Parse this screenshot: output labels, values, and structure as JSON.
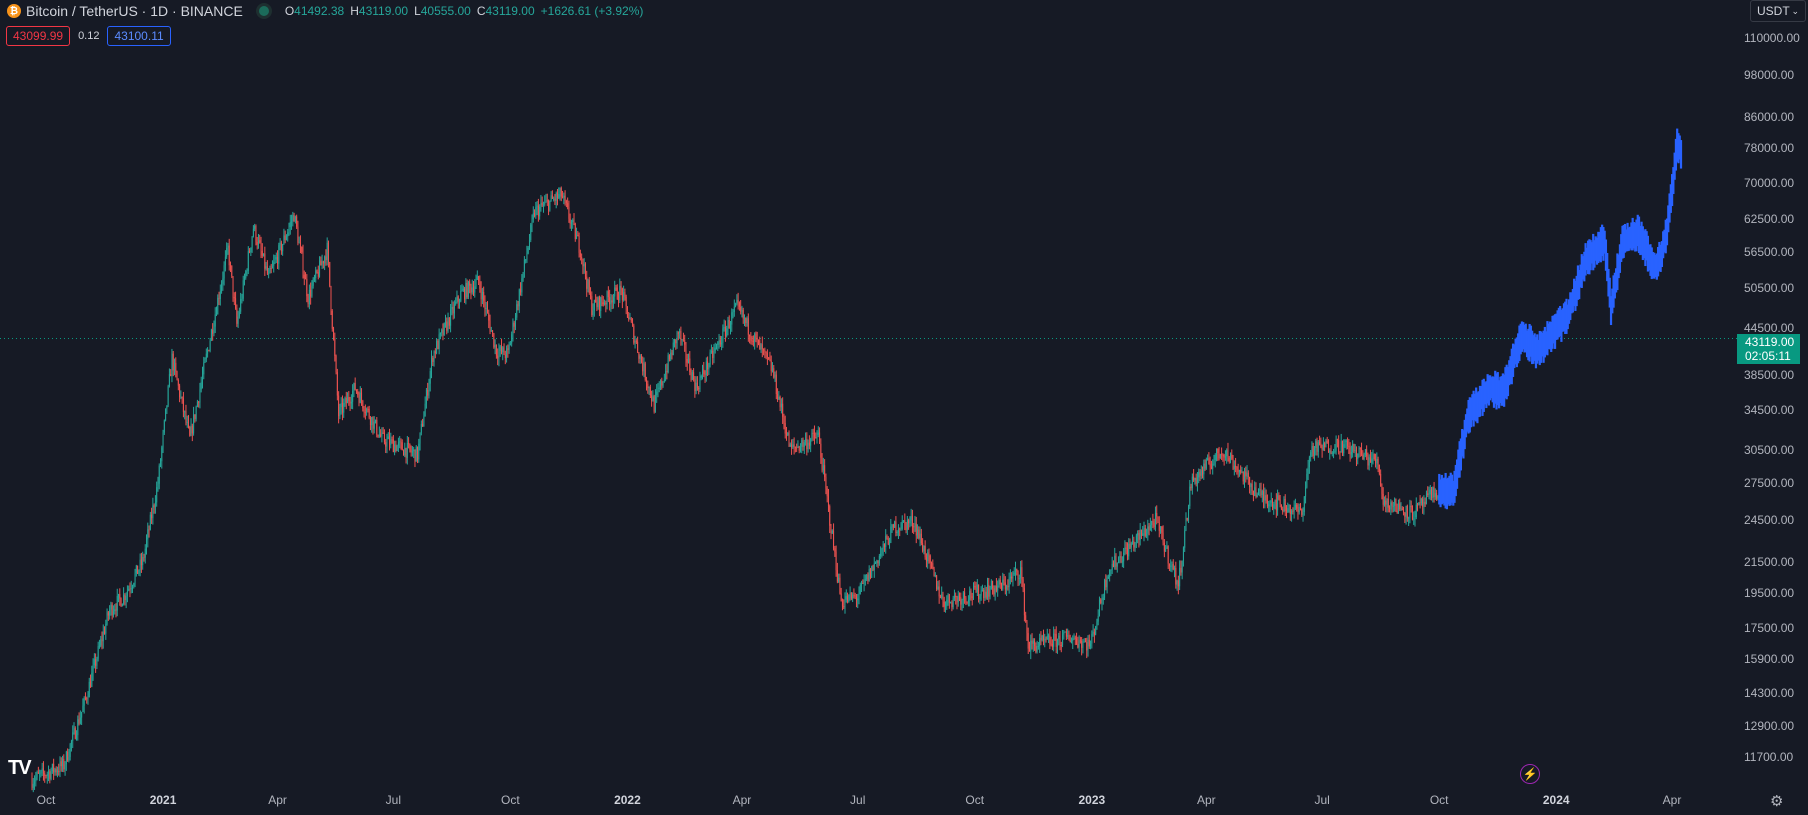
{
  "header": {
    "title": "Bitcoin / TetherUS · 1D · BINANCE",
    "coin_icon": "bitcoin-icon",
    "ohlc": [
      {
        "key": "O",
        "value": "41492.38"
      },
      {
        "key": "H",
        "value": "43119.00"
      },
      {
        "key": "L",
        "value": "40555.00"
      },
      {
        "key": "C",
        "value": "43119.00"
      }
    ],
    "change": "+1626.61 (+3.92%)"
  },
  "quote": {
    "bid": "43099.99",
    "spread": "0.12",
    "ask": "43100.11"
  },
  "currency": {
    "label": "USDT",
    "icon": "chevron-down-icon"
  },
  "price_label": {
    "price": "43119.00",
    "countdown": "02:05:11"
  },
  "branding": {
    "logo": "TV"
  },
  "colors": {
    "background": "#161a25",
    "up": "#26a69a",
    "down": "#ef5350",
    "forecast": "#2962ff",
    "last_price": "#089981"
  },
  "chart_data": {
    "type": "candlestick",
    "y_scale": "log",
    "ylim": [
      10800,
      118000
    ],
    "y_ticks": [
      "110000.00",
      "98000.00",
      "86000.00",
      "78000.00",
      "70000.00",
      "62500.00",
      "56500.00",
      "50500.00",
      "44500.00",
      "38500.00",
      "34500.00",
      "30500.00",
      "27500.00",
      "24500.00",
      "21500.00",
      "19500.00",
      "17500.00",
      "15900.00",
      "14300.00",
      "12900.00",
      "11700.00"
    ],
    "x_ticks": [
      {
        "label": "Oct",
        "date": "2020-10-01"
      },
      {
        "label": "2021",
        "date": "2021-01-01"
      },
      {
        "label": "Apr",
        "date": "2021-04-01"
      },
      {
        "label": "Jul",
        "date": "2021-07-01"
      },
      {
        "label": "Oct",
        "date": "2021-10-01"
      },
      {
        "label": "2022",
        "date": "2022-01-01"
      },
      {
        "label": "Apr",
        "date": "2022-04-01"
      },
      {
        "label": "Jul",
        "date": "2022-07-01"
      },
      {
        "label": "Oct",
        "date": "2022-10-01"
      },
      {
        "label": "2023",
        "date": "2023-01-01"
      },
      {
        "label": "Apr",
        "date": "2023-04-01"
      },
      {
        "label": "Jul",
        "date": "2023-07-01"
      },
      {
        "label": "Oct",
        "date": "2023-10-01"
      },
      {
        "label": "2024",
        "date": "2024-01-01"
      },
      {
        "label": "Apr",
        "date": "2024-04-01"
      }
    ],
    "last_price": 43119.0,
    "price_path": [
      [
        "2020-09-20",
        10900
      ],
      [
        "2020-10-15",
        11400
      ],
      [
        "2020-10-31",
        13800
      ],
      [
        "2020-11-20",
        18500
      ],
      [
        "2020-12-01",
        19300
      ],
      [
        "2020-12-16",
        21500
      ],
      [
        "2020-12-28",
        27500
      ],
      [
        "2021-01-08",
        40500
      ],
      [
        "2021-01-22",
        31500
      ],
      [
        "2021-02-08",
        44000
      ],
      [
        "2021-02-21",
        57000
      ],
      [
        "2021-02-28",
        45000
      ],
      [
        "2021-03-13",
        61000
      ],
      [
        "2021-03-25",
        52000
      ],
      [
        "2021-04-14",
        63500
      ],
      [
        "2021-04-25",
        49000
      ],
      [
        "2021-05-10",
        57000
      ],
      [
        "2021-05-19",
        34000
      ],
      [
        "2021-06-01",
        37000
      ],
      [
        "2021-06-22",
        31500
      ],
      [
        "2021-07-20",
        30000
      ],
      [
        "2021-08-01",
        41000
      ],
      [
        "2021-08-23",
        49500
      ],
      [
        "2021-09-06",
        51500
      ],
      [
        "2021-09-20",
        41500
      ],
      [
        "2021-09-29",
        41000
      ],
      [
        "2021-10-20",
        64000
      ],
      [
        "2021-11-10",
        67500
      ],
      [
        "2021-11-25",
        57000
      ],
      [
        "2021-12-04",
        47500
      ],
      [
        "2021-12-27",
        50000
      ],
      [
        "2022-01-22",
        35000
      ],
      [
        "2022-02-10",
        44000
      ],
      [
        "2022-02-24",
        37000
      ],
      [
        "2022-03-28",
        47500
      ],
      [
        "2022-04-25",
        39000
      ],
      [
        "2022-05-09",
        30500
      ],
      [
        "2022-05-31",
        31800
      ],
      [
        "2022-06-18",
        19000
      ],
      [
        "2022-07-01",
        19300
      ],
      [
        "2022-07-30",
        24000
      ],
      [
        "2022-08-14",
        24400
      ],
      [
        "2022-09-06",
        19000
      ],
      [
        "2022-10-25",
        20000
      ],
      [
        "2022-11-06",
        21000
      ],
      [
        "2022-11-12",
        16500
      ],
      [
        "2022-12-15",
        17000
      ],
      [
        "2022-12-31",
        16600
      ],
      [
        "2023-01-14",
        21000
      ],
      [
        "2023-02-20",
        24500
      ],
      [
        "2023-03-10",
        20000
      ],
      [
        "2023-03-20",
        27500
      ],
      [
        "2023-04-14",
        30500
      ],
      [
        "2023-05-12",
        26500
      ],
      [
        "2023-06-15",
        25000
      ],
      [
        "2023-06-22",
        30500
      ],
      [
        "2023-07-14",
        31000
      ],
      [
        "2023-08-14",
        29300
      ],
      [
        "2023-08-18",
        26000
      ],
      [
        "2023-09-11",
        25000
      ],
      [
        "2023-10-01",
        27000
      ]
    ],
    "forecast_path": [
      [
        "2023-10-01",
        27000
      ],
      [
        "2023-10-12",
        26800
      ],
      [
        "2023-10-24",
        34000
      ],
      [
        "2023-11-10",
        37000
      ],
      [
        "2023-11-20",
        36500
      ],
      [
        "2023-12-05",
        43500
      ],
      [
        "2023-12-18",
        41500
      ],
      [
        "2024-01-10",
        46500
      ],
      [
        "2024-01-25",
        55500
      ],
      [
        "2024-02-08",
        58500
      ],
      [
        "2024-02-13",
        47500
      ],
      [
        "2024-02-22",
        58000
      ],
      [
        "2024-03-05",
        60000
      ],
      [
        "2024-03-20",
        53500
      ],
      [
        "2024-03-28",
        60000
      ],
      [
        "2024-04-05",
        79000
      ],
      [
        "2024-04-08",
        77000
      ]
    ]
  }
}
